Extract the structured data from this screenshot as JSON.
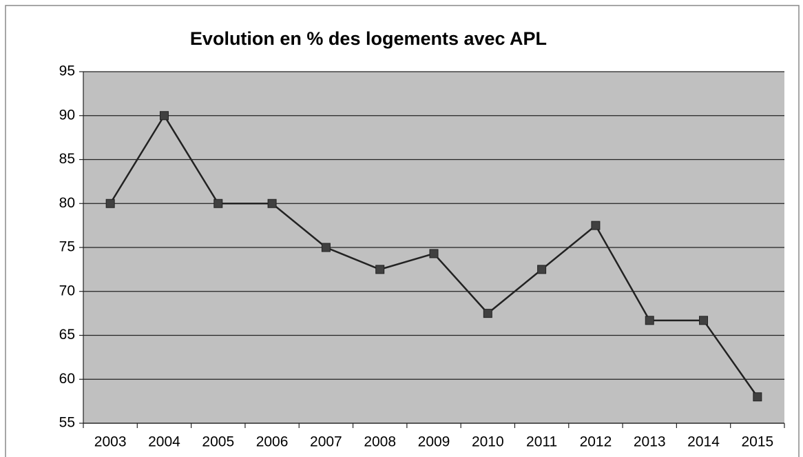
{
  "chart_data": {
    "type": "line",
    "title": "Evolution en % des logements avec APL",
    "categories": [
      "2003",
      "2004",
      "2005",
      "2006",
      "2007",
      "2008",
      "2009",
      "2010",
      "2011",
      "2012",
      "2013",
      "2014",
      "2015"
    ],
    "values": [
      80,
      90,
      80,
      80,
      75,
      72.5,
      74.3,
      67.5,
      72.5,
      77.5,
      66.7,
      66.7,
      58
    ],
    "color": "#222222",
    "marker_color": "#404040",
    "ylim": [
      55,
      95
    ],
    "yticks": [
      55,
      60,
      65,
      70,
      75,
      80,
      85,
      90,
      95
    ],
    "grid": true
  }
}
